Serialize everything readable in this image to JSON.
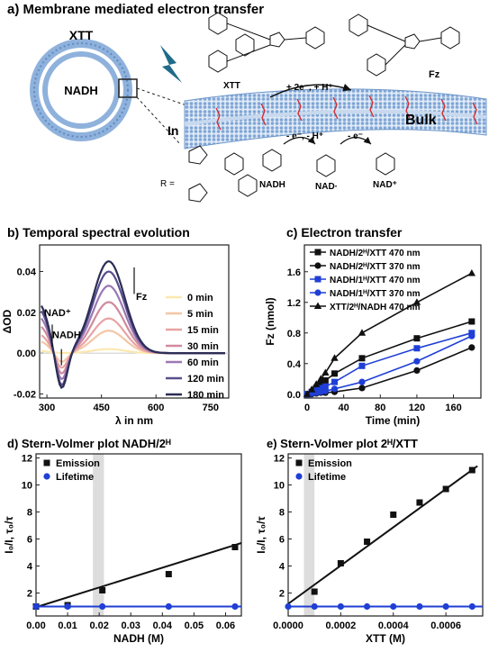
{
  "panels": {
    "a": {
      "title": "a) Membrane mediated electron transfer"
    },
    "b": {
      "title": "b) Temporal spectral evolution"
    },
    "c": {
      "title": "c) Electron transfer"
    },
    "d": {
      "title": "d) Stern-Volmer plot NADH/2ᴴ"
    },
    "e": {
      "title": "e) Stern-Volmer plot 2ᴴ/XTT"
    }
  },
  "schematic": {
    "vesicle_label": "XTT",
    "vesicle_inner_label": "NADH",
    "xtt_label": "XTT",
    "fz_label": "Fz",
    "reaction_arrow_label": "+ 2e⁻, + H⁺",
    "inside_label": "In",
    "bulk_label": "Bulk",
    "r_label": "R =",
    "step1_label": "- e⁻, - H⁺",
    "step2_label": "- e⁻",
    "nadh_label": "NADH",
    "nad_radical_label": "NAD·",
    "nad_plus_label": "NAD⁺",
    "colors": {
      "membrane": "#a9c4e4",
      "membrane_dark": "#6f97c9",
      "bolt": "#1f6b8a",
      "ring_red": "#d62728"
    }
  },
  "chart_data": [
    {
      "id": "b",
      "type": "line",
      "xlabel": "λ in nm",
      "ylabel": "ΔOD",
      "xlim": [
        280,
        800
      ],
      "ylim": [
        -0.022,
        0.053
      ],
      "xticks": [
        300,
        450,
        600,
        750
      ],
      "yticks": [
        -0.02,
        0.0,
        0.02,
        0.04
      ],
      "ytick_labels": [
        "-0.02",
        "0.00",
        "0.02",
        "0.04"
      ],
      "annotations": [
        "NAD⁺",
        "NADH",
        "Fz"
      ],
      "legend": "right",
      "series": [
        {
          "name": "0 min",
          "color": "#fbe8b0",
          "peak": 0.002,
          "dip": 0.0
        },
        {
          "name": "5 min",
          "color": "#f3c6a6",
          "peak": 0.011,
          "dip": -0.003
        },
        {
          "name": "15 min",
          "color": "#e8a3a3",
          "peak": 0.017,
          "dip": -0.005
        },
        {
          "name": "30 min",
          "color": "#cf8a9e",
          "peak": 0.025,
          "dip": -0.007
        },
        {
          "name": "60 min",
          "color": "#9b78b3",
          "peak": 0.033,
          "dip": -0.009
        },
        {
          "name": "120 min",
          "color": "#5a4e8e",
          "peak": 0.04,
          "dip": -0.011
        },
        {
          "name": "180 min",
          "color": "#2c2d55",
          "peak": 0.045,
          "dip": -0.012
        }
      ]
    },
    {
      "id": "c",
      "type": "line",
      "xlabel": "Time (min)",
      "ylabel": "Fz (nmol)",
      "xlim": [
        -3,
        190
      ],
      "ylim": [
        -0.05,
        1.95
      ],
      "xticks": [
        0,
        40,
        80,
        120,
        160
      ],
      "yticks": [
        0.0,
        0.4,
        0.8,
        1.2,
        1.6
      ],
      "ytick_labels": [
        "0.0",
        "0.4",
        "0.8",
        "1.2",
        "1.6"
      ],
      "legend": "top-left",
      "series": [
        {
          "name": "NADH/2ᴴ/XTT 470 nm",
          "color": "#111111",
          "marker": "square",
          "x": [
            0,
            5,
            10,
            15,
            20,
            30,
            60,
            120,
            180
          ],
          "y": [
            0.0,
            0.03,
            0.08,
            0.13,
            0.18,
            0.27,
            0.47,
            0.73,
            0.95
          ]
        },
        {
          "name": "NADH/2ᴴ/XTT 370 nm",
          "color": "#111111",
          "marker": "circle",
          "x": [
            0,
            5,
            10,
            15,
            20,
            30,
            60,
            120,
            180
          ],
          "y": [
            0.0,
            0.0,
            0.01,
            0.02,
            0.02,
            0.03,
            0.08,
            0.31,
            0.61
          ]
        },
        {
          "name": "NADH/1ᴴ/XTT 470 nm",
          "color": "#1f3fd6",
          "marker": "square",
          "x": [
            0,
            5,
            10,
            15,
            20,
            30,
            60,
            120,
            180
          ],
          "y": [
            0.0,
            0.02,
            0.05,
            0.08,
            0.1,
            0.16,
            0.37,
            0.6,
            0.8
          ]
        },
        {
          "name": "NADH/1ᴴ/XTT 370 nm",
          "color": "#1f3fd6",
          "marker": "circle",
          "x": [
            0,
            5,
            10,
            15,
            20,
            30,
            60,
            120,
            180
          ],
          "y": [
            0.0,
            0.01,
            0.02,
            0.03,
            0.04,
            0.07,
            0.16,
            0.43,
            0.76
          ]
        },
        {
          "name": "XTT/2ᴴ/NADH 470 nm",
          "color": "#111111",
          "marker": "triangle",
          "x": [
            0,
            5,
            10,
            15,
            20,
            30,
            60,
            120,
            180
          ],
          "y": [
            0.0,
            0.06,
            0.13,
            0.2,
            0.28,
            0.47,
            0.8,
            1.2,
            1.58
          ]
        }
      ]
    },
    {
      "id": "d",
      "type": "scatter",
      "xlabel": "NADH (M)",
      "ylabel": "I₀/I, τ₀/τ",
      "xlim": [
        0.0,
        0.065
      ],
      "ylim": [
        0.3,
        12.3
      ],
      "xticks": [
        0.0,
        0.01,
        0.02,
        0.03,
        0.04,
        0.05,
        0.06
      ],
      "xtick_labels": [
        "0.00",
        "0.01",
        "0.02",
        "0.03",
        "0.04",
        "0.05",
        "0.06"
      ],
      "yticks": [
        2,
        4,
        6,
        8,
        10,
        12
      ],
      "legend": "top-left",
      "shaded_x": [
        0.018,
        0.0215
      ],
      "series": [
        {
          "name": "Emission",
          "color": "#111111",
          "marker": "square",
          "x": [
            0.0,
            0.01,
            0.021,
            0.042,
            0.063
          ],
          "y": [
            1.0,
            1.1,
            2.2,
            3.4,
            5.4
          ],
          "fit": [
            [
              0.0,
              0.95
            ],
            [
              0.065,
              5.7
            ]
          ]
        },
        {
          "name": "Lifetime",
          "color": "#1f3fd6",
          "marker": "circle",
          "x": [
            0.0,
            0.01,
            0.021,
            0.042,
            0.063
          ],
          "y": [
            1.0,
            1.0,
            1.0,
            1.0,
            1.0
          ],
          "fit": [
            [
              0.0,
              1.0
            ],
            [
              0.065,
              1.0
            ]
          ]
        }
      ]
    },
    {
      "id": "e",
      "type": "scatter",
      "xlabel": "XTT (M)",
      "ylabel": "I₀/I, τ₀/τ",
      "xlim": [
        0.0,
        0.00074
      ],
      "ylim": [
        0.3,
        12.3
      ],
      "xticks": [
        0.0,
        0.0002,
        0.0004,
        0.0006
      ],
      "xtick_labels": [
        "0.0000",
        "0.0002",
        "0.0004",
        "0.0006"
      ],
      "yticks": [
        2,
        4,
        6,
        8,
        10,
        12
      ],
      "legend": "top-left",
      "shaded_x": [
        6e-05,
        0.0001
      ],
      "series": [
        {
          "name": "Emission",
          "color": "#111111",
          "marker": "square",
          "x": [
            0.0001,
            0.0002,
            0.0003,
            0.0004,
            0.0005,
            0.0006,
            0.0007
          ],
          "y": [
            2.1,
            4.2,
            5.8,
            7.8,
            8.7,
            9.7,
            11.1
          ],
          "fit": [
            [
              0.0,
              1.2
            ],
            [
              0.00072,
              11.4
            ]
          ]
        },
        {
          "name": "Lifetime",
          "color": "#1f3fd6",
          "marker": "circle",
          "x": [
            0.0,
            0.0001,
            0.0002,
            0.0003,
            0.0004,
            0.0005,
            0.0006,
            0.0007
          ],
          "y": [
            1.0,
            1.0,
            1.0,
            1.0,
            1.0,
            1.0,
            1.0,
            1.0
          ],
          "fit": [
            [
              0.0,
              1.0
            ],
            [
              0.00074,
              1.0
            ]
          ]
        }
      ]
    }
  ]
}
